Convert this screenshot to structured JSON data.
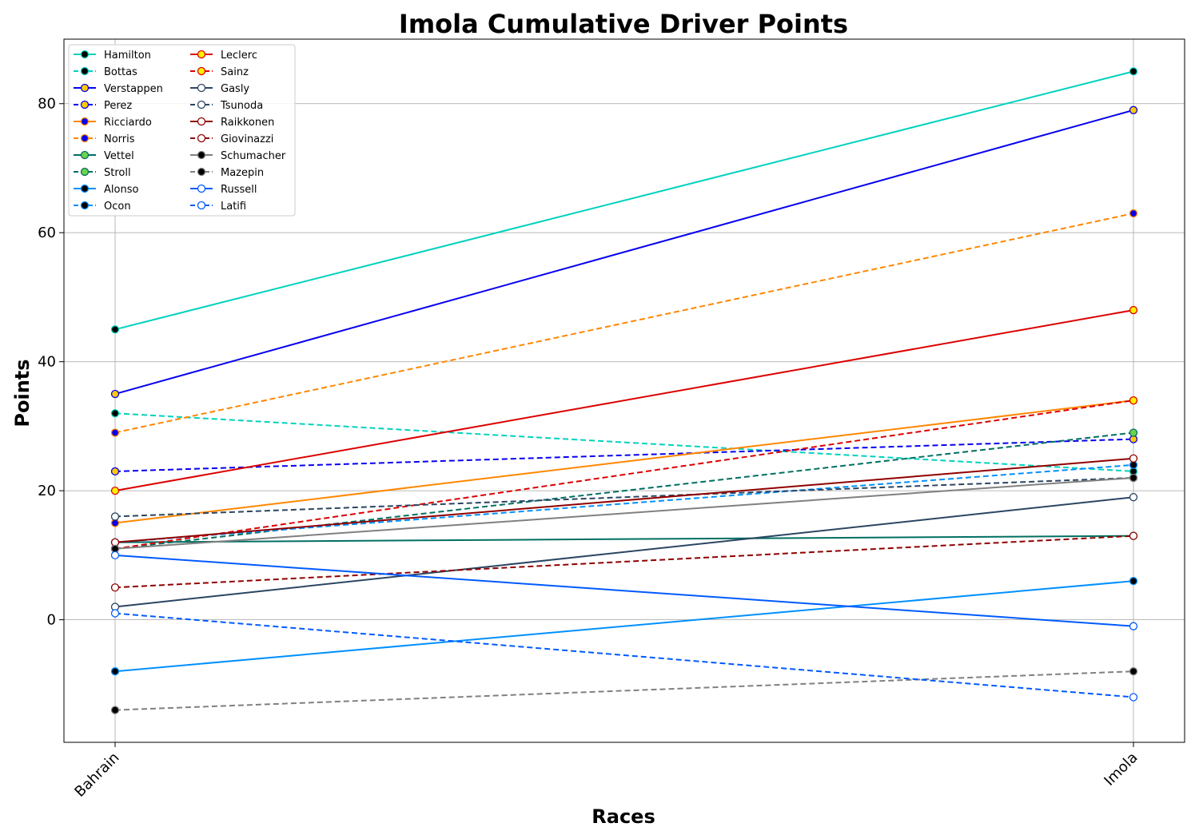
{
  "chart_data": {
    "type": "line",
    "title": "Imola Cumulative Driver Points",
    "xlabel": "Races",
    "ylabel": "Points",
    "categories": [
      "Bahrain",
      "Imola"
    ],
    "ylim": [
      -19,
      90
    ],
    "yticks": [
      0,
      20,
      40,
      60,
      80
    ],
    "grid": true,
    "legend_position": "top-left",
    "legend_columns": 2,
    "series": [
      {
        "name": "Hamilton",
        "values": [
          45,
          85
        ],
        "color": "#00d2be",
        "dash": false,
        "marker_face": "#000000"
      },
      {
        "name": "Bottas",
        "values": [
          32,
          23
        ],
        "color": "#00d2be",
        "dash": true,
        "marker_face": "#000000"
      },
      {
        "name": "Verstappen",
        "values": [
          35,
          79
        ],
        "color": "#0600ef",
        "dash": false,
        "marker_face": "#ffc906"
      },
      {
        "name": "Perez",
        "values": [
          23,
          28
        ],
        "color": "#0600ef",
        "dash": true,
        "marker_face": "#ffc906"
      },
      {
        "name": "Ricciardo",
        "values": [
          15,
          34
        ],
        "color": "#ff8700",
        "dash": false,
        "marker_face": "#0600ef"
      },
      {
        "name": "Norris",
        "values": [
          29,
          63
        ],
        "color": "#ff8700",
        "dash": true,
        "marker_face": "#0600ef"
      },
      {
        "name": "Vettel",
        "values": [
          12,
          13
        ],
        "color": "#006f62",
        "dash": false,
        "marker_face": "#6cd34d"
      },
      {
        "name": "Stroll",
        "values": [
          11,
          29
        ],
        "color": "#006f62",
        "dash": true,
        "marker_face": "#6cd34d"
      },
      {
        "name": "Alonso",
        "values": [
          -8,
          6
        ],
        "color": "#0090ff",
        "dash": false,
        "marker_face": "#000000"
      },
      {
        "name": "Ocon",
        "values": [
          12,
          24
        ],
        "color": "#0090ff",
        "dash": true,
        "marker_face": "#000000"
      },
      {
        "name": "Leclerc",
        "values": [
          20,
          48
        ],
        "color": "#dc0000",
        "dash": false,
        "marker_face": "#fff200"
      },
      {
        "name": "Sainz",
        "values": [
          11,
          34
        ],
        "color": "#dc0000",
        "dash": true,
        "marker_face": "#fff200"
      },
      {
        "name": "Gasly",
        "values": [
          2,
          19
        ],
        "color": "#2b4562",
        "dash": false,
        "marker_face": "#ffffff"
      },
      {
        "name": "Tsunoda",
        "values": [
          16,
          22
        ],
        "color": "#2b4562",
        "dash": true,
        "marker_face": "#ffffff"
      },
      {
        "name": "Raikkonen",
        "values": [
          12,
          25
        ],
        "color": "#900000",
        "dash": false,
        "marker_face": "#ffffff"
      },
      {
        "name": "Giovinazzi",
        "values": [
          5,
          13
        ],
        "color": "#900000",
        "dash": true,
        "marker_face": "#ffffff"
      },
      {
        "name": "Schumacher",
        "values": [
          11,
          22
        ],
        "color": "#808080",
        "dash": false,
        "marker_face": "#000000"
      },
      {
        "name": "Mazepin",
        "values": [
          -14,
          -8
        ],
        "color": "#808080",
        "dash": true,
        "marker_face": "#000000"
      },
      {
        "name": "Russell",
        "values": [
          10,
          -1
        ],
        "color": "#005aff",
        "dash": false,
        "marker_face": "#ffffff"
      },
      {
        "name": "Latifi",
        "values": [
          1,
          -12
        ],
        "color": "#005aff",
        "dash": true,
        "marker_face": "#ffffff"
      }
    ]
  }
}
